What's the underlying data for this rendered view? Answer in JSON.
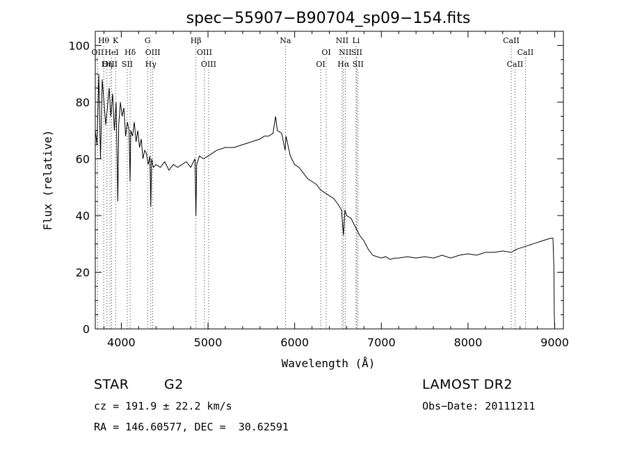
{
  "chart_data": {
    "type": "line",
    "title": "spec−55907−B90704_sp09−154.fits",
    "xlabel": "Wavelength (Å)",
    "ylabel": "Flux (relative)",
    "xlim": [
      3700,
      9100
    ],
    "ylim": [
      0,
      105
    ],
    "xticks": [
      4000,
      5000,
      6000,
      7000,
      8000,
      9000
    ],
    "yticks": [
      0,
      20,
      40,
      60,
      80,
      100
    ],
    "grid": false,
    "series": [
      {
        "x": [
          3700,
          3720,
          3740,
          3760,
          3780,
          3800,
          3820,
          3840,
          3860,
          3880,
          3900,
          3920,
          3940,
          3950,
          3960,
          3970,
          3990,
          4010,
          4030,
          4050,
          4070,
          4090,
          4101,
          4110,
          4130,
          4150,
          4170,
          4190,
          4210,
          4230,
          4250,
          4270,
          4290,
          4310,
          4330,
          4340,
          4350,
          4370,
          4400,
          4450,
          4500,
          4550,
          4600,
          4650,
          4700,
          4750,
          4800,
          4850,
          4861,
          4870,
          4900,
          4950,
          5000,
          5050,
          5100,
          5200,
          5300,
          5400,
          5500,
          5600,
          5650,
          5700,
          5750,
          5780,
          5800,
          5850,
          5890,
          5900,
          5950,
          6000,
          6050,
          6100,
          6150,
          6200,
          6250,
          6300,
          6350,
          6400,
          6450,
          6500,
          6540,
          6563,
          6580,
          6600,
          6650,
          6700,
          6750,
          6800,
          6850,
          6900,
          6950,
          7000,
          7050,
          7100,
          7150,
          7200,
          7300,
          7400,
          7500,
          7600,
          7700,
          7800,
          7900,
          8000,
          8100,
          8200,
          8300,
          8400,
          8500,
          8550,
          8600,
          8650,
          8700,
          8750,
          8800,
          8850,
          8900,
          8950,
          8980,
          8990,
          8995,
          9000
        ],
        "y": [
          70,
          65,
          90,
          60,
          88,
          80,
          72,
          78,
          85,
          75,
          83,
          70,
          80,
          62,
          45,
          72,
          80,
          75,
          78,
          68,
          73,
          70,
          52,
          70,
          68,
          73,
          66,
          70,
          64,
          67,
          60,
          63,
          62,
          58,
          61,
          43,
          60,
          57,
          58,
          57,
          59,
          56,
          58,
          57,
          58,
          59,
          57,
          60,
          40,
          58,
          61,
          60,
          61,
          62,
          63,
          64,
          64,
          65,
          66,
          67,
          68,
          68,
          69,
          75,
          70,
          69,
          63,
          68,
          61,
          58,
          57,
          55,
          53,
          52,
          51,
          49,
          48,
          47,
          46,
          44,
          42,
          33,
          42,
          40,
          39,
          36,
          33,
          31,
          28,
          26,
          25.5,
          25,
          25.5,
          24.5,
          25,
          25,
          25.5,
          25,
          25.5,
          25,
          26,
          25,
          26,
          26.5,
          26,
          27,
          27,
          27.5,
          27,
          28,
          28.5,
          29,
          29.5,
          30,
          30.5,
          31,
          31.5,
          32,
          32,
          22,
          5,
          0
        ]
      }
    ],
    "line_markers": [
      {
        "label": "Hθ",
        "x": 3797,
        "row": 1
      },
      {
        "label": "K",
        "x": 3934,
        "row": 1
      },
      {
        "label": "G",
        "x": 4304,
        "row": 1
      },
      {
        "label": "Hβ",
        "x": 4861,
        "row": 1
      },
      {
        "label": "Na",
        "x": 5893,
        "row": 1
      },
      {
        "label": "NII",
        "x": 6548,
        "row": 1
      },
      {
        "label": "Li",
        "x": 6708,
        "row": 1
      },
      {
        "label": "CaII",
        "x": 8498,
        "row": 1
      },
      {
        "label": "OII",
        "x": 3727,
        "row": 2
      },
      {
        "label": "HeI",
        "x": 3889,
        "row": 2
      },
      {
        "label": "Hδ",
        "x": 4102,
        "row": 2
      },
      {
        "label": "OIII",
        "x": 4363,
        "row": 2
      },
      {
        "label": "OIII",
        "x": 4959,
        "row": 2
      },
      {
        "label": "OI",
        "x": 6364,
        "row": 2
      },
      {
        "label": "NII",
        "x": 6583,
        "row": 2
      },
      {
        "label": "SII",
        "x": 6716,
        "row": 2
      },
      {
        "label": "CaII",
        "x": 8662,
        "row": 2
      },
      {
        "label": "OIII",
        "x": 3869,
        "row": 3
      },
      {
        "label": "Hη",
        "x": 3835,
        "row": 3
      },
      {
        "label": "SII",
        "x": 4069,
        "row": 3
      },
      {
        "label": "Hγ",
        "x": 4340,
        "row": 3
      },
      {
        "label": "OIII",
        "x": 5007,
        "row": 3
      },
      {
        "label": "OI",
        "x": 6300,
        "row": 3
      },
      {
        "label": "Hα",
        "x": 6563,
        "row": 3
      },
      {
        "label": "SII",
        "x": 6731,
        "row": 3
      },
      {
        "label": "CaII",
        "x": 8542,
        "row": 3
      }
    ]
  },
  "info": {
    "object_class": "STAR",
    "subclass": "G2",
    "survey": "LAMOST DR2",
    "redshift_line": "cz = 191.9 ± 22.2 km/s",
    "obs_date_line": "Obs−Date: 20111211",
    "coords_line": "RA = 146.60577, DEC =  30.62591"
  }
}
